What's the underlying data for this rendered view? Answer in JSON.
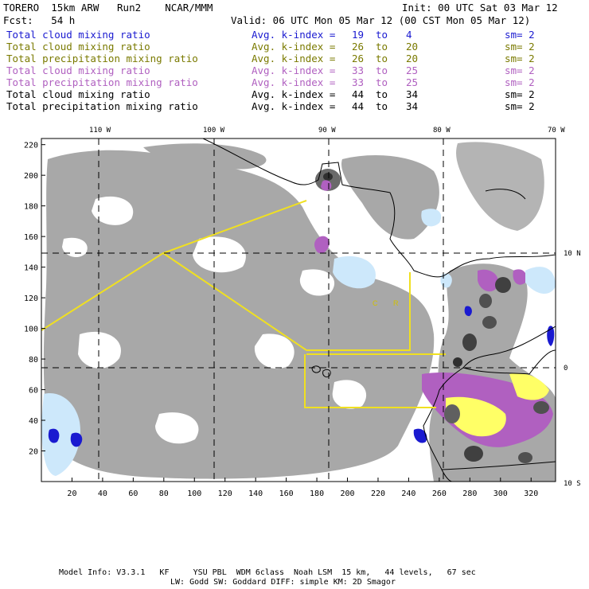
{
  "header": {
    "model": "TORERO",
    "resolution": "15km ARW",
    "run": "Run2",
    "org": "NCAR/MMM",
    "init": "Init: 00 UTC Sat 03 Mar 12",
    "fcst_label": "Fcst:",
    "fcst_value": "54 h",
    "valid": "Valid: 06 UTC Mon 05 Mar 12 (00 CST Mon 05 Mar 12)"
  },
  "legend": [
    {
      "name": "Total cloud mixing ratio",
      "stat": "Avg. k-index =",
      "from": "19",
      "to_word": "to",
      "to": "4",
      "sm": "sm= 2",
      "color": "#1a1ad0"
    },
    {
      "name": "Total cloud mixing ratio",
      "stat": "Avg. k-index =",
      "from": "26",
      "to_word": "to",
      "to": "20",
      "sm": "sm= 2",
      "color": "#7a7a00"
    },
    {
      "name": "Total precipitation mixing ratio",
      "stat": "Avg. k-index =",
      "from": "26",
      "to_word": "to",
      "to": "20",
      "sm": "sm= 2",
      "color": "#7a7a00"
    },
    {
      "name": "Total cloud mixing ratio",
      "stat": "Avg. k-index =",
      "from": "33",
      "to_word": "to",
      "to": "25",
      "sm": "sm= 2",
      "color": "#b060c0"
    },
    {
      "name": "Total precipitation mixing ratio",
      "stat": "Avg. k-index =",
      "from": "33",
      "to_word": "to",
      "to": "25",
      "sm": "sm= 2",
      "color": "#b060c0"
    },
    {
      "name": "Total cloud mixing ratio",
      "stat": "Avg. k-index =",
      "from": "44",
      "to_word": "to",
      "to": "34",
      "sm": "sm= 2",
      "color": "#000000"
    },
    {
      "name": "Total precipitation mixing ratio",
      "stat": "Avg. k-index =",
      "from": "44",
      "to_word": "to",
      "to": "34",
      "sm": "sm= 2",
      "color": "#000000"
    }
  ],
  "map": {
    "x_grid_ticks": [
      20,
      40,
      60,
      80,
      100,
      120,
      140,
      160,
      180,
      200,
      220,
      240,
      260,
      280,
      300,
      320
    ],
    "y_grid_ticks": [
      20,
      40,
      60,
      80,
      100,
      120,
      140,
      160,
      180,
      200,
      220
    ],
    "lon_labels": [
      "110 W",
      "100 W",
      "90 W",
      "80 W",
      "70 W"
    ],
    "lat_labels": [
      "10 N",
      "0",
      "10 S"
    ],
    "region_labels": [
      "C",
      "R"
    ]
  },
  "footer": {
    "line1": "Model Info: V3.3.1   KF     YSU PBL  WDM 6class  Noah LSM  15 km,   44 levels,   67 sec",
    "line2": "LW: Godd SW: Goddard DIFF: simple KM: 2D Smagor"
  }
}
